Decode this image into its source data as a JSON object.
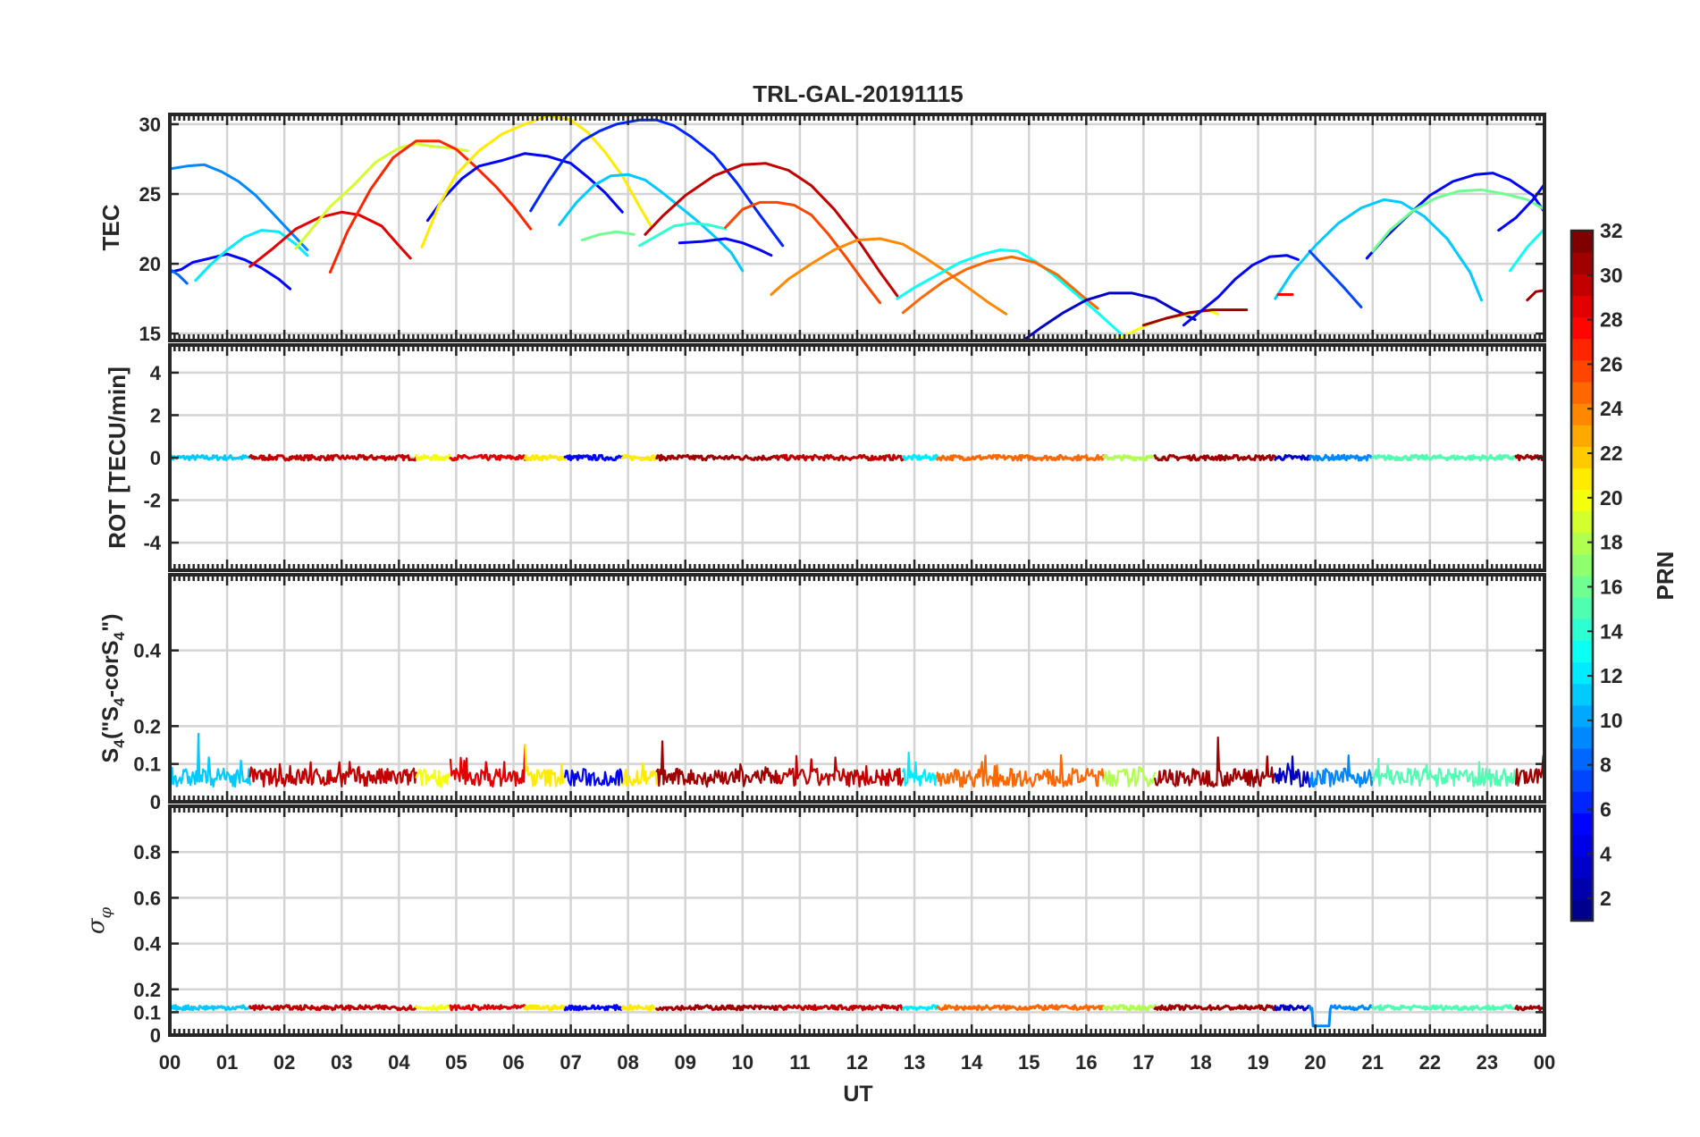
{
  "chart_data": {
    "type": "line",
    "title": "TRL-GAL-20191115",
    "xlabel": "UT",
    "x_ticks": [
      "00",
      "01",
      "02",
      "03",
      "04",
      "05",
      "06",
      "07",
      "08",
      "09",
      "10",
      "11",
      "12",
      "13",
      "14",
      "15",
      "16",
      "17",
      "18",
      "19",
      "20",
      "21",
      "22",
      "23",
      "00"
    ],
    "xlim": [
      0,
      24
    ],
    "colorbar": {
      "label": "PRN",
      "range": [
        1,
        32
      ],
      "ticks": [
        2,
        4,
        6,
        8,
        10,
        12,
        14,
        16,
        18,
        20,
        22,
        24,
        26,
        28,
        30,
        32
      ],
      "tick_labels": [
        "2",
        "4",
        "6",
        "8",
        "10",
        "12",
        "14",
        "16",
        "18",
        "20",
        "22",
        "24",
        "26",
        "28",
        "30",
        "32"
      ],
      "colormap": "jet",
      "jet_stops": [
        "#00008f",
        "#0000ff",
        "#0080ff",
        "#00ffff",
        "#80ff80",
        "#ffff00",
        "#ff8000",
        "#ff0000",
        "#800000"
      ]
    },
    "panels": [
      {
        "id": "tec",
        "ylabel": "TEC",
        "ylim": [
          14.5,
          30.7
        ],
        "yticks": [
          15,
          20,
          25,
          30
        ],
        "ytick_labels": [
          "15",
          "20",
          "25",
          "30"
        ],
        "grid": true,
        "series": [
          {
            "prn": 9,
            "x": [
              0,
              0.3,
              0.6,
              0.9,
              1.2,
              1.5,
              1.8,
              2.1,
              2.4
            ],
            "y": [
              26.8,
              27.0,
              27.1,
              26.6,
              25.9,
              24.9,
              23.6,
              22.3,
              21.0
            ]
          },
          {
            "prn": 5,
            "x": [
              0,
              0.2,
              0.4,
              0.7,
              1.0,
              1.3,
              1.6,
              1.9,
              2.1
            ],
            "y": [
              19.4,
              19.6,
              20.1,
              20.4,
              20.7,
              20.3,
              19.7,
              18.9,
              18.2
            ]
          },
          {
            "prn": 8,
            "x": [
              0,
              0.15,
              0.3
            ],
            "y": [
              19.6,
              19.2,
              18.6
            ]
          },
          {
            "prn": 12,
            "x": [
              0.45,
              0.7,
              1.0,
              1.3,
              1.6,
              1.9,
              2.2,
              2.4
            ],
            "y": [
              18.8,
              19.9,
              21.0,
              21.9,
              22.4,
              22.3,
              21.4,
              20.6
            ]
          },
          {
            "prn": 29,
            "x": [
              1.4,
              1.8,
              2.2,
              2.6,
              3.0,
              3.3,
              3.7,
              4.0,
              4.2
            ],
            "y": [
              19.8,
              21.1,
              22.5,
              23.3,
              23.7,
              23.5,
              22.7,
              21.3,
              20.4
            ]
          },
          {
            "prn": 19,
            "x": [
              2.2,
              2.5,
              2.8,
              3.2,
              3.6,
              4.0,
              4.3,
              4.6,
              4.9,
              5.2
            ],
            "y": [
              21.1,
              22.6,
              24.1,
              25.6,
              27.3,
              28.3,
              28.6,
              28.4,
              28.3,
              28.1
            ]
          },
          {
            "prn": 27,
            "x": [
              2.8,
              3.1,
              3.5,
              3.9,
              4.3,
              4.7,
              5.0,
              5.3,
              5.7,
              6.0,
              6.3
            ],
            "y": [
              19.4,
              22.3,
              25.3,
              27.6,
              28.8,
              28.8,
              28.2,
              27.1,
              25.5,
              24.1,
              22.5
            ]
          },
          {
            "prn": 5,
            "x": [
              4.5,
              4.8,
              5.1,
              5.4,
              5.8,
              6.2,
              6.6,
              7.0,
              7.3,
              7.6,
              7.9
            ],
            "y": [
              23.1,
              24.8,
              26.1,
              27.0,
              27.4,
              27.9,
              27.7,
              27.2,
              26.2,
              25.1,
              23.7
            ]
          },
          {
            "prn": 21,
            "x": [
              4.4,
              4.7,
              5.0,
              5.4,
              5.8,
              6.2,
              6.6,
              7.0,
              7.3,
              7.6,
              7.9,
              8.2,
              8.4
            ],
            "y": [
              21.2,
              24.2,
              26.4,
              28.1,
              29.3,
              30.0,
              30.6,
              30.3,
              29.4,
              28.0,
              26.3,
              24.1,
              22.7
            ]
          },
          {
            "prn": 6,
            "x": [
              6.3,
              6.6,
              6.9,
              7.2,
              7.5,
              7.8,
              8.2,
              8.5,
              8.8,
              9.1,
              9.5,
              9.9,
              10.3,
              10.7
            ],
            "y": [
              23.8,
              25.8,
              27.6,
              28.8,
              29.5,
              30.0,
              30.3,
              30.3,
              29.9,
              29.1,
              27.8,
              25.8,
              23.5,
              21.3
            ]
          },
          {
            "prn": 11,
            "x": [
              6.8,
              7.1,
              7.4,
              7.7,
              8.0,
              8.3,
              8.6,
              8.9,
              9.2,
              9.5,
              9.8,
              10.0
            ],
            "y": [
              22.8,
              24.4,
              25.6,
              26.3,
              26.4,
              26.0,
              25.1,
              24.1,
              23.1,
              22.0,
              20.8,
              19.5
            ]
          },
          {
            "prn": 16,
            "x": [
              7.2,
              7.5,
              7.8,
              8.1
            ],
            "y": [
              21.7,
              22.1,
              22.3,
              22.1
            ]
          },
          {
            "prn": 14,
            "x": [
              8.2,
              8.5,
              8.8,
              9.1,
              9.4,
              9.7
            ],
            "y": [
              21.3,
              22.0,
              22.7,
              22.9,
              22.8,
              22.5
            ]
          },
          {
            "prn": 30,
            "x": [
              8.3,
              8.6,
              9.0,
              9.5,
              10.0,
              10.4,
              10.8,
              11.2,
              11.6,
              12.0,
              12.4,
              12.7
            ],
            "y": [
              22.1,
              23.4,
              24.9,
              26.3,
              27.1,
              27.2,
              26.7,
              25.6,
              23.9,
              21.8,
              19.4,
              17.7
            ]
          },
          {
            "prn": 5,
            "x": [
              8.9,
              9.3,
              9.7,
              10.0,
              10.3,
              10.5
            ],
            "y": [
              21.5,
              21.6,
              21.8,
              21.5,
              21.0,
              20.6
            ]
          },
          {
            "prn": 26,
            "x": [
              9.7,
              10.0,
              10.3,
              10.6,
              10.9,
              11.2,
              11.5,
              11.8,
              12.1,
              12.4
            ],
            "y": [
              22.6,
              23.9,
              24.4,
              24.4,
              24.2,
              23.5,
              22.1,
              20.5,
              18.8,
              17.2
            ]
          },
          {
            "prn": 24,
            "x": [
              10.5,
              10.8,
              11.2,
              11.6,
              12.0,
              12.4,
              12.8,
              13.2,
              13.6,
              14.0,
              14.3,
              14.6
            ],
            "y": [
              17.8,
              18.9,
              20.0,
              21.0,
              21.7,
              21.8,
              21.4,
              20.4,
              19.3,
              18.1,
              17.2,
              16.4
            ]
          },
          {
            "prn": 13,
            "x": [
              12.7,
              13.0,
              13.4,
              13.8,
              14.2,
              14.5,
              14.8,
              15.1,
              15.4,
              15.8,
              16.2,
              16.6
            ],
            "y": [
              17.5,
              18.3,
              19.2,
              20.1,
              20.7,
              21.0,
              20.9,
              20.2,
              19.3,
              17.9,
              16.5,
              15.0
            ]
          },
          {
            "prn": 25,
            "x": [
              12.8,
              13.1,
              13.5,
              13.9,
              14.3,
              14.7,
              15.1,
              15.5,
              15.9,
              16.2
            ],
            "y": [
              16.5,
              17.5,
              18.7,
              19.6,
              20.2,
              20.5,
              20.1,
              19.2,
              17.8,
              16.8
            ]
          },
          {
            "prn": 3,
            "x": [
              14.9,
              15.2,
              15.6,
              16.0,
              16.4,
              16.8,
              17.2,
              17.5,
              17.9
            ],
            "y": [
              14.5,
              15.4,
              16.5,
              17.4,
              17.9,
              17.9,
              17.5,
              16.8,
              16.0
            ]
          },
          {
            "prn": 20,
            "x": [
              16.5,
              16.8,
              17.1,
              17.4,
              17.8,
              18.1,
              18.3
            ],
            "y": [
              14.5,
              15.1,
              15.7,
              16.1,
              16.4,
              16.7,
              16.4
            ]
          },
          {
            "prn": 31,
            "x": [
              17.0,
              17.4,
              17.8,
              18.2,
              18.5,
              18.8
            ],
            "y": [
              15.6,
              16.1,
              16.5,
              16.7,
              16.7,
              16.7
            ]
          },
          {
            "prn": 5,
            "x": [
              17.7,
              18.0,
              18.3,
              18.6,
              18.9,
              19.2,
              19.5,
              19.7
            ],
            "y": [
              15.6,
              16.6,
              17.6,
              18.9,
              19.9,
              20.5,
              20.6,
              20.3
            ]
          },
          {
            "prn": 11,
            "x": [
              19.3,
              19.6,
              20.0,
              20.4,
              20.8,
              21.2,
              21.5,
              21.9,
              22.3,
              22.7,
              22.9
            ],
            "y": [
              17.5,
              19.4,
              21.3,
              22.9,
              24.0,
              24.6,
              24.4,
              23.4,
              21.8,
              19.4,
              17.4
            ]
          },
          {
            "prn": 7,
            "x": [
              19.9,
              20.2,
              20.5,
              20.8
            ],
            "y": [
              20.9,
              19.6,
              18.3,
              16.9
            ]
          },
          {
            "prn": 28,
            "x": [
              19.35,
              19.6
            ],
            "y": [
              17.8,
              17.8
            ]
          },
          {
            "prn": 5,
            "x": [
              20.9,
              21.2,
              21.6,
              22.0,
              22.4,
              22.8,
              23.1,
              23.4,
              23.8,
              24.0
            ],
            "y": [
              20.4,
              21.8,
              23.4,
              24.9,
              25.9,
              26.4,
              26.5,
              26.0,
              24.9,
              23.7
            ]
          },
          {
            "prn": 16,
            "x": [
              21.0,
              21.3,
              21.7,
              22.1,
              22.5,
              22.9,
              23.3,
              23.7,
              24.0
            ],
            "y": [
              20.9,
              22.4,
              23.8,
              24.7,
              25.2,
              25.3,
              25.0,
              24.6,
              23.9
            ]
          },
          {
            "prn": 5,
            "x": [
              23.2,
              23.5,
              23.8,
              24.0
            ],
            "y": [
              22.4,
              23.3,
              24.6,
              25.7
            ]
          },
          {
            "prn": 13,
            "x": [
              23.4,
              23.7,
              24.0
            ],
            "y": [
              19.5,
              21.2,
              22.5
            ]
          },
          {
            "prn": 31,
            "x": [
              23.7,
              23.85,
              24.0
            ],
            "y": [
              17.4,
              18.0,
              18.1
            ]
          }
        ]
      },
      {
        "id": "rot",
        "ylabel": "ROT [TECU/min]",
        "ylim": [
          -5.3,
          5.3
        ],
        "yticks": [
          -4,
          -2,
          0,
          2,
          4
        ],
        "ytick_labels": [
          "-4",
          "-2",
          "0",
          "2",
          "4"
        ],
        "grid": true,
        "baseline": 0.0,
        "noise_amplitude": 0.12
      },
      {
        "id": "s4",
        "ylabel": "S4 (\"S4-corS4\")",
        "ylabel_parts": {
          "main": "S",
          "sub": "4",
          "paren_open": " (\"S",
          "sub2": "4",
          "mid": "-corS",
          "sub3": "4",
          "paren_close": "\")"
        },
        "ylim": [
          0,
          0.6
        ],
        "yticks": [
          0,
          0.1,
          0.2,
          0.4
        ],
        "ytick_labels": [
          "0",
          "0.1",
          "0.2",
          "0.4"
        ],
        "grid": true,
        "baseline": 0.04,
        "noise_amplitude": 0.06,
        "spikes": [
          [
            0.5,
            0.18
          ],
          [
            6.2,
            0.15
          ],
          [
            8.6,
            0.16
          ],
          [
            12.9,
            0.13
          ],
          [
            18.3,
            0.17
          ],
          [
            19.6,
            0.12
          ]
        ]
      },
      {
        "id": "sigma",
        "ylabel": "σφ",
        "ylim": [
          0,
          1.0
        ],
        "yticks": [
          0,
          0.1,
          0.2,
          0.4,
          0.6,
          0.8
        ],
        "ytick_labels": [
          "0",
          "0.1",
          "0.2",
          "0.4",
          "0.6",
          "0.8"
        ],
        "grid": true,
        "baseline": 0.12,
        "noise_amplitude": 0.01,
        "dip": {
          "x": [
            19.95,
            20.25
          ],
          "y": 0.04
        }
      }
    ],
    "prn_segments": [
      {
        "x0": 0.0,
        "x1": 1.4,
        "prn": 11
      },
      {
        "x0": 1.4,
        "x1": 4.3,
        "prn": 30
      },
      {
        "x0": 4.3,
        "x1": 4.9,
        "prn": 20
      },
      {
        "x0": 4.9,
        "x1": 6.2,
        "prn": 29
      },
      {
        "x0": 6.2,
        "x1": 6.9,
        "prn": 21
      },
      {
        "x0": 6.9,
        "x1": 7.9,
        "prn": 5
      },
      {
        "x0": 7.9,
        "x1": 8.5,
        "prn": 21
      },
      {
        "x0": 8.5,
        "x1": 10.6,
        "prn": 31
      },
      {
        "x0": 10.6,
        "x1": 12.8,
        "prn": 30
      },
      {
        "x0": 12.8,
        "x1": 13.4,
        "prn": 12
      },
      {
        "x0": 13.4,
        "x1": 16.3,
        "prn": 25
      },
      {
        "x0": 16.3,
        "x1": 17.2,
        "prn": 18
      },
      {
        "x0": 17.2,
        "x1": 19.3,
        "prn": 31
      },
      {
        "x0": 19.3,
        "x1": 19.9,
        "prn": 3
      },
      {
        "x0": 19.9,
        "x1": 21.0,
        "prn": 9
      },
      {
        "x0": 21.0,
        "x1": 23.5,
        "prn": 15
      },
      {
        "x0": 23.5,
        "x1": 24.0,
        "prn": 31
      }
    ]
  }
}
